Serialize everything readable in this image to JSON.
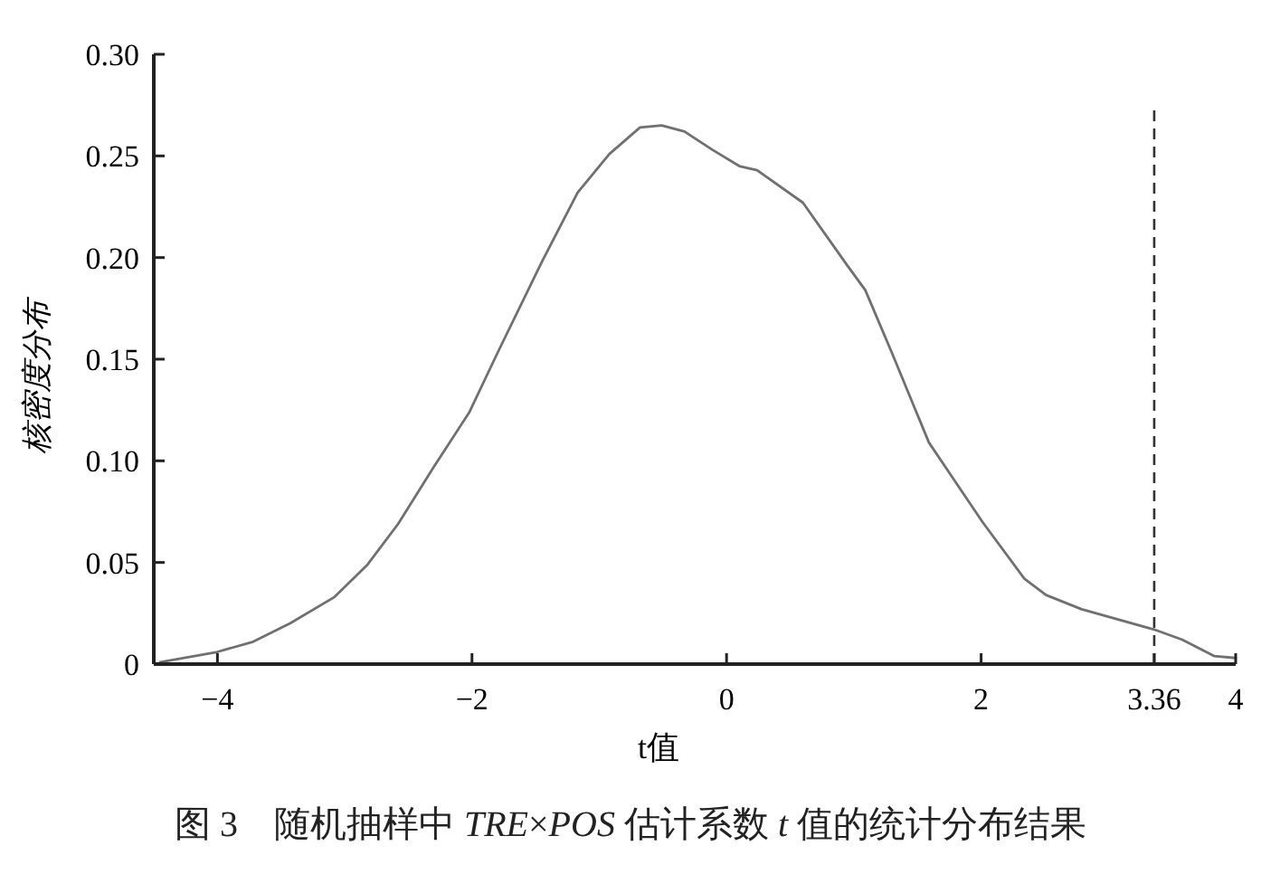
{
  "chart_data": {
    "type": "line",
    "xlabel": "t值",
    "ylabel": "核密度分布",
    "x": [
      -4.45,
      -4.0,
      -3.72,
      -3.43,
      -3.08,
      -2.82,
      -2.58,
      -2.3,
      -2.02,
      -1.8,
      -1.45,
      -1.17,
      -0.92,
      -0.68,
      -0.51,
      -0.33,
      -0.11,
      0.1,
      0.24,
      0.6,
      0.95,
      1.09,
      1.3,
      1.59,
      2.01,
      2.34,
      2.51,
      2.79,
      3.36,
      3.58,
      3.83,
      4.0
    ],
    "series": [
      {
        "color": "#707070",
        "values": [
          0.001,
          0.006,
          0.011,
          0.02,
          0.033,
          0.049,
          0.069,
          0.097,
          0.124,
          0.153,
          0.198,
          0.232,
          0.251,
          0.264,
          0.265,
          0.262,
          0.253,
          0.245,
          0.243,
          0.227,
          0.196,
          0.184,
          0.153,
          0.109,
          0.07,
          0.042,
          0.034,
          0.027,
          0.017,
          0.012,
          0.004,
          0.003
        ]
      }
    ],
    "xlim": [
      -4.5,
      4
    ],
    "ylim": [
      0,
      0.3
    ],
    "xticks": [
      -4,
      -2,
      0,
      2,
      3.36,
      4
    ],
    "yticks": [
      0,
      {
        "value": 0.05,
        "label": "0.05"
      },
      {
        "value": 0.1,
        "label": "0.10"
      },
      {
        "value": 0.15,
        "label": "0.15"
      },
      {
        "value": 0.2,
        "label": "0.20"
      },
      {
        "value": 0.25,
        "label": "0.25"
      },
      {
        "value": 0.3,
        "label": "0.30"
      }
    ],
    "ref_lines": [
      {
        "axis": "x",
        "value": 3.36,
        "color": "#333333",
        "line_style": "dashed"
      }
    ],
    "annotations": [
      "图 3　随机抽样中 *TRE*×*POS* 估计系数 *t* 值的统计分布结果"
    ],
    "grid": false,
    "marker": "none",
    "line_style": "solid"
  }
}
